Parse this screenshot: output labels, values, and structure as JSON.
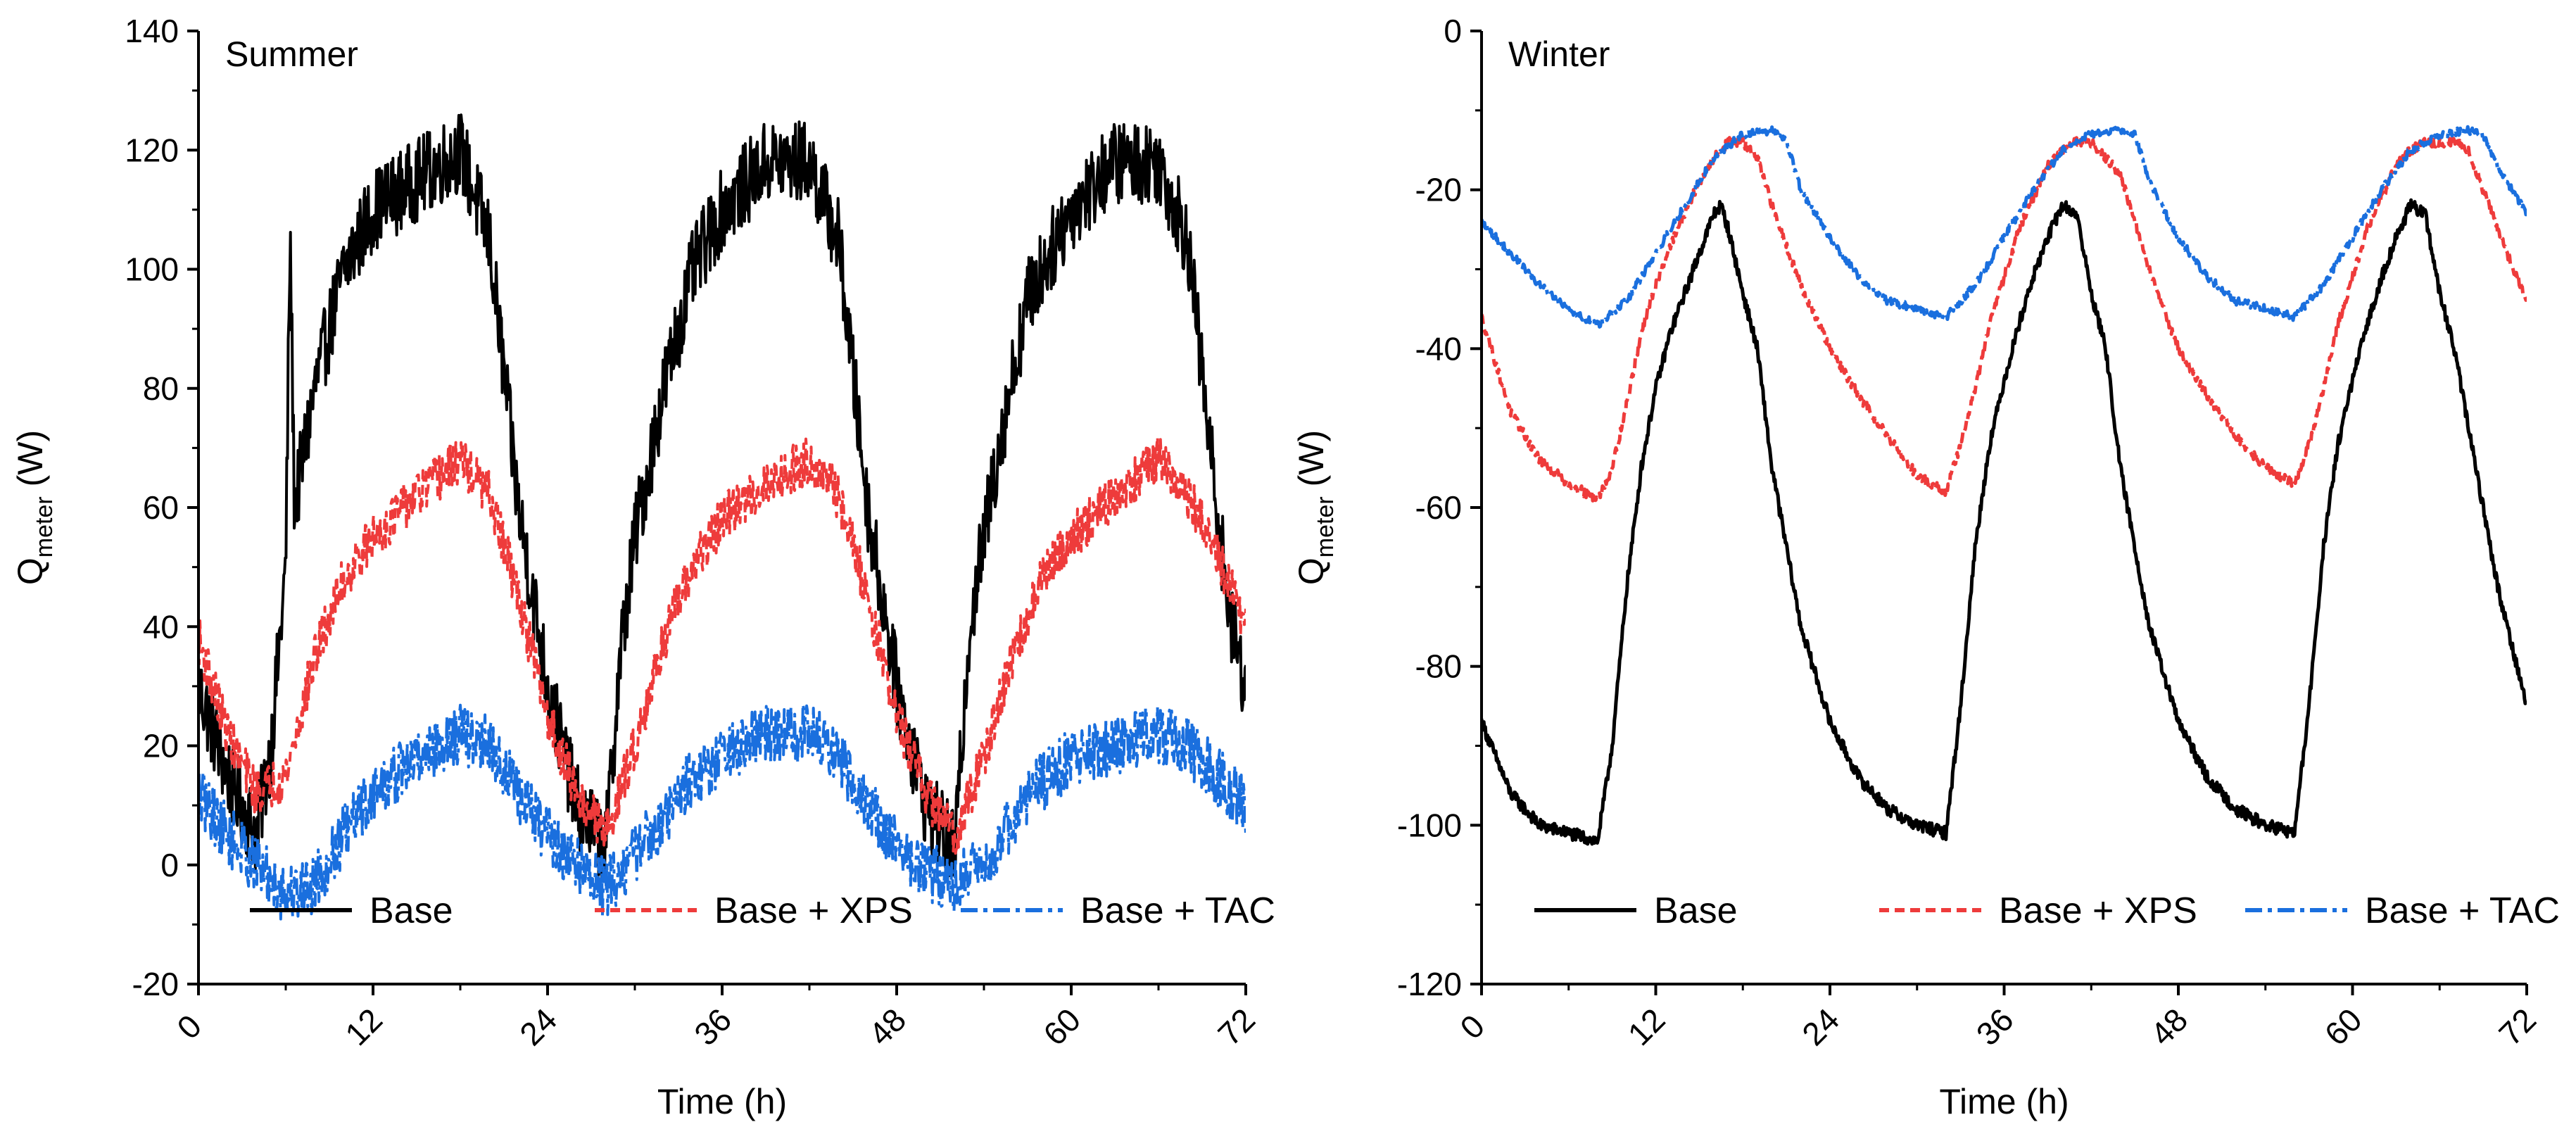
{
  "chart_data": [
    {
      "type": "line",
      "panel_label": "Summer",
      "xlabel": "Time (h)",
      "ylabel_main": "Q",
      "ylabel_sub": "meter",
      "ylabel_unit": " (W)",
      "xlim": [
        0,
        72
      ],
      "ylim": [
        -20,
        140
      ],
      "xticks": [
        0,
        12,
        24,
        36,
        48,
        60,
        72
      ],
      "yticks": [
        -20,
        0,
        20,
        40,
        60,
        80,
        100,
        120,
        140
      ],
      "legend": [
        "Base",
        "Base + XPS",
        "Base + TAC"
      ],
      "series": [
        {
          "name": "Base",
          "color": "#000000",
          "dash": "solid",
          "points": [
            [
              0,
              30
            ],
            [
              2,
              15
            ],
            [
              4,
              5
            ],
            [
              5,
              20
            ],
            [
              6,
              50
            ],
            [
              6.3,
              106
            ],
            [
              6.6,
              60
            ],
            [
              8,
              80
            ],
            [
              10,
              100
            ],
            [
              12,
              110
            ],
            [
              15,
              115
            ],
            [
              18,
              120
            ],
            [
              20,
              105
            ],
            [
              22,
              60
            ],
            [
              24,
              30
            ],
            [
              26,
              10
            ],
            [
              28,
              3
            ],
            [
              29,
              35
            ],
            [
              30,
              55
            ],
            [
              32,
              80
            ],
            [
              34,
              100
            ],
            [
              36,
              110
            ],
            [
              39,
              118
            ],
            [
              42,
              118
            ],
            [
              44,
              105
            ],
            [
              46,
              60
            ],
            [
              48,
              30
            ],
            [
              50,
              10
            ],
            [
              52,
              2
            ],
            [
              53,
              40
            ],
            [
              55,
              70
            ],
            [
              57,
              95
            ],
            [
              60,
              110
            ],
            [
              63,
              118
            ],
            [
              66,
              118
            ],
            [
              68,
              105
            ],
            [
              70,
              60
            ],
            [
              71,
              40
            ],
            [
              72,
              30
            ]
          ],
          "noise": 7
        },
        {
          "name": "Base + XPS",
          "color": "#ee3b3b",
          "dash": "dashed",
          "points": [
            [
              0,
              38
            ],
            [
              2,
              22
            ],
            [
              4,
              12
            ],
            [
              6,
              15
            ],
            [
              8,
              35
            ],
            [
              10,
              48
            ],
            [
              12,
              55
            ],
            [
              15,
              62
            ],
            [
              18,
              68
            ],
            [
              20,
              62
            ],
            [
              22,
              45
            ],
            [
              24,
              25
            ],
            [
              26,
              12
            ],
            [
              28,
              5
            ],
            [
              30,
              20
            ],
            [
              32,
              38
            ],
            [
              34,
              50
            ],
            [
              36,
              58
            ],
            [
              39,
              64
            ],
            [
              42,
              68
            ],
            [
              44,
              62
            ],
            [
              46,
              45
            ],
            [
              48,
              25
            ],
            [
              50,
              12
            ],
            [
              52,
              5
            ],
            [
              54,
              18
            ],
            [
              56,
              35
            ],
            [
              58,
              48
            ],
            [
              60,
              55
            ],
            [
              63,
              62
            ],
            [
              66,
              68
            ],
            [
              68,
              62
            ],
            [
              70,
              52
            ],
            [
              72,
              40
            ]
          ],
          "noise": 4
        },
        {
          "name": "Base + TAC",
          "color": "#1a6fde",
          "dash": "dashdot",
          "points": [
            [
              0,
              12
            ],
            [
              2,
              5
            ],
            [
              4,
              0
            ],
            [
              6,
              -5
            ],
            [
              8,
              -3
            ],
            [
              10,
              5
            ],
            [
              12,
              12
            ],
            [
              15,
              18
            ],
            [
              18,
              22
            ],
            [
              20,
              20
            ],
            [
              22,
              12
            ],
            [
              24,
              5
            ],
            [
              26,
              0
            ],
            [
              28,
              -4
            ],
            [
              30,
              2
            ],
            [
              32,
              8
            ],
            [
              34,
              15
            ],
            [
              36,
              18
            ],
            [
              39,
              22
            ],
            [
              42,
              22
            ],
            [
              44,
              18
            ],
            [
              46,
              10
            ],
            [
              48,
              3
            ],
            [
              50,
              -1
            ],
            [
              52,
              -3
            ],
            [
              54,
              0
            ],
            [
              56,
              8
            ],
            [
              58,
              14
            ],
            [
              60,
              18
            ],
            [
              63,
              20
            ],
            [
              66,
              22
            ],
            [
              68,
              20
            ],
            [
              70,
              15
            ],
            [
              72,
              10
            ]
          ],
          "noise": 5
        }
      ]
    },
    {
      "type": "line",
      "panel_label": "Winter",
      "xlabel": "Time (h)",
      "ylabel_main": "Q",
      "ylabel_sub": "meter",
      "ylabel_unit": " (W)",
      "xlim": [
        0,
        72
      ],
      "ylim": [
        -120,
        0
      ],
      "xticks": [
        0,
        12,
        24,
        36,
        48,
        60,
        72
      ],
      "yticks": [
        -120,
        -100,
        -80,
        -60,
        -40,
        -20,
        0
      ],
      "legend": [
        "Base",
        "Base + XPS",
        "Base + TAC"
      ],
      "series": [
        {
          "name": "Base",
          "color": "#000000",
          "dash": "solid",
          "points": [
            [
              0,
              -87
            ],
            [
              2,
              -96
            ],
            [
              4,
              -100
            ],
            [
              6,
              -101
            ],
            [
              8,
              -102
            ],
            [
              9,
              -90
            ],
            [
              10,
              -70
            ],
            [
              11,
              -55
            ],
            [
              12,
              -45
            ],
            [
              13,
              -38
            ],
            [
              14,
              -33
            ],
            [
              15,
              -28
            ],
            [
              16,
              -23
            ],
            [
              16.5,
              -22
            ],
            [
              17,
              -25
            ],
            [
              18,
              -33
            ],
            [
              19,
              -40
            ],
            [
              20,
              -55
            ],
            [
              22,
              -75
            ],
            [
              24,
              -87
            ],
            [
              26,
              -94
            ],
            [
              28,
              -98
            ],
            [
              30,
              -100
            ],
            [
              32,
              -101
            ],
            [
              33,
              -85
            ],
            [
              34,
              -65
            ],
            [
              35,
              -52
            ],
            [
              36,
              -44
            ],
            [
              37,
              -37
            ],
            [
              38,
              -31
            ],
            [
              39,
              -26
            ],
            [
              40,
              -22
            ],
            [
              41,
              -23
            ],
            [
              42,
              -33
            ],
            [
              43,
              -40
            ],
            [
              44,
              -55
            ],
            [
              46,
              -75
            ],
            [
              48,
              -87
            ],
            [
              50,
              -94
            ],
            [
              52,
              -98
            ],
            [
              54,
              -100
            ],
            [
              56,
              -101
            ],
            [
              57,
              -85
            ],
            [
              58,
              -65
            ],
            [
              59,
              -52
            ],
            [
              60,
              -44
            ],
            [
              61,
              -37
            ],
            [
              62,
              -31
            ],
            [
              63,
              -26
            ],
            [
              64,
              -22
            ],
            [
              65,
              -23
            ],
            [
              66,
              -33
            ],
            [
              67,
              -40
            ],
            [
              68,
              -50
            ],
            [
              70,
              -70
            ],
            [
              72,
              -85
            ]
          ],
          "noise": 0.8
        },
        {
          "name": "Base + XPS",
          "color": "#ee3b3b",
          "dash": "dashed",
          "points": [
            [
              0,
              -36
            ],
            [
              2,
              -48
            ],
            [
              4,
              -54
            ],
            [
              6,
              -57
            ],
            [
              8,
              -59
            ],
            [
              9,
              -55
            ],
            [
              10,
              -47
            ],
            [
              11,
              -38
            ],
            [
              12,
              -32
            ],
            [
              13,
              -27
            ],
            [
              14,
              -23
            ],
            [
              15,
              -19
            ],
            [
              16,
              -16
            ],
            [
              17,
              -14
            ],
            [
              18,
              -14
            ],
            [
              19,
              -16
            ],
            [
              20,
              -22
            ],
            [
              22,
              -32
            ],
            [
              24,
              -40
            ],
            [
              26,
              -46
            ],
            [
              28,
              -51
            ],
            [
              30,
              -56
            ],
            [
              32,
              -58
            ],
            [
              33,
              -52
            ],
            [
              34,
              -45
            ],
            [
              35,
              -37
            ],
            [
              36,
              -31
            ],
            [
              37,
              -25
            ],
            [
              38,
              -21
            ],
            [
              39,
              -17
            ],
            [
              40,
              -15
            ],
            [
              41,
              -14
            ],
            [
              42,
              -14
            ],
            [
              44,
              -18
            ],
            [
              46,
              -30
            ],
            [
              48,
              -40
            ],
            [
              50,
              -46
            ],
            [
              52,
              -51
            ],
            [
              54,
              -55
            ],
            [
              56,
              -57
            ],
            [
              57,
              -52
            ],
            [
              58,
              -45
            ],
            [
              59,
              -37
            ],
            [
              60,
              -31
            ],
            [
              61,
              -25
            ],
            [
              62,
              -21
            ],
            [
              63,
              -17
            ],
            [
              64,
              -15
            ],
            [
              65,
              -14
            ],
            [
              67,
              -14
            ],
            [
              68,
              -15
            ],
            [
              70,
              -25
            ],
            [
              72,
              -34
            ]
          ],
          "noise": 0.6
        },
        {
          "name": "Base + TAC",
          "color": "#1a6fde",
          "dash": "dashdot",
          "points": [
            [
              0,
              -24
            ],
            [
              2,
              -28
            ],
            [
              4,
              -32
            ],
            [
              6,
              -35
            ],
            [
              8,
              -37
            ],
            [
              10,
              -34
            ],
            [
              12,
              -28
            ],
            [
              14,
              -22
            ],
            [
              16,
              -16
            ],
            [
              18,
              -13
            ],
            [
              20,
              -12.5
            ],
            [
              21,
              -14
            ],
            [
              22,
              -20
            ],
            [
              24,
              -26
            ],
            [
              26,
              -31
            ],
            [
              28,
              -34
            ],
            [
              30,
              -35
            ],
            [
              32,
              -36
            ],
            [
              34,
              -32
            ],
            [
              36,
              -26
            ],
            [
              38,
              -20
            ],
            [
              40,
              -15
            ],
            [
              42,
              -13
            ],
            [
              44,
              -12.5
            ],
            [
              45,
              -13
            ],
            [
              46,
              -19
            ],
            [
              48,
              -26
            ],
            [
              50,
              -31
            ],
            [
              52,
              -34
            ],
            [
              54,
              -35
            ],
            [
              56,
              -36
            ],
            [
              58,
              -32
            ],
            [
              60,
              -26
            ],
            [
              62,
              -20
            ],
            [
              64,
              -15
            ],
            [
              66,
              -13
            ],
            [
              68,
              -12.5
            ],
            [
              69,
              -13
            ],
            [
              70,
              -17
            ],
            [
              72,
              -23
            ]
          ],
          "noise": 0.5
        }
      ]
    }
  ]
}
